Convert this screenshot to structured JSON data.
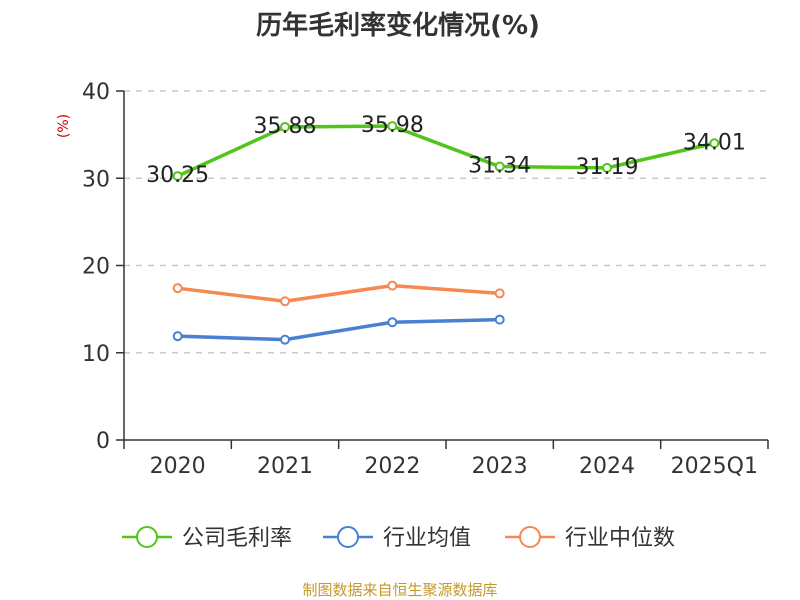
{
  "chart_data": {
    "type": "line",
    "title": "历年毛利率变化情况(%)",
    "ylabel": "(%)",
    "xlabel": "",
    "categories": [
      "2020",
      "2021",
      "2022",
      "2023",
      "2024",
      "2025Q1"
    ],
    "ylim": [
      0,
      40
    ],
    "yticks": [
      0,
      10,
      20,
      30,
      40
    ],
    "grid": true,
    "legend_position": "bottom",
    "series": [
      {
        "name": "公司毛利率",
        "color": "#52c41a",
        "values": [
          30.25,
          35.88,
          35.98,
          31.34,
          31.19,
          34.01
        ],
        "labels": [
          "30.25",
          "35.88",
          "35.98",
          "31.34",
          "31.19",
          "34.01"
        ]
      },
      {
        "name": "行业均值",
        "color": "#4a7fd4",
        "values": [
          11.9,
          11.5,
          13.5,
          13.8,
          null,
          null
        ]
      },
      {
        "name": "行业中位数",
        "color": "#f5894f",
        "values": [
          17.4,
          15.9,
          17.7,
          16.8,
          null,
          null
        ]
      }
    ],
    "source": "制图数据来自恒生聚源数据库"
  }
}
